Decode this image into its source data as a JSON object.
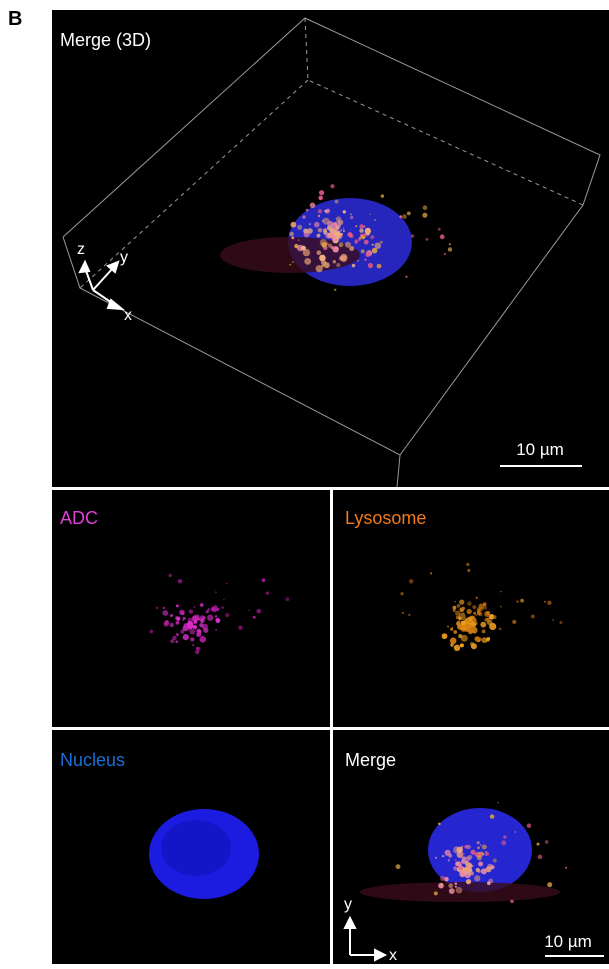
{
  "panel_label": "B",
  "main_panel": {
    "title": "Merge (3D)",
    "axes": {
      "z": "z",
      "y": "y",
      "x": "x"
    },
    "scale_bar": "10 µm"
  },
  "panels": [
    {
      "label": "ADC",
      "label_color": "#e040d8"
    },
    {
      "label": "Lysosome",
      "label_color": "#f07a1a"
    },
    {
      "label": "Nucleus",
      "label_color": "#1a6ed8"
    },
    {
      "label": "Merge",
      "label_color": "#ffffff",
      "axes": {
        "y": "y",
        "x": "x"
      },
      "scale_bar": "10 µm"
    }
  ]
}
